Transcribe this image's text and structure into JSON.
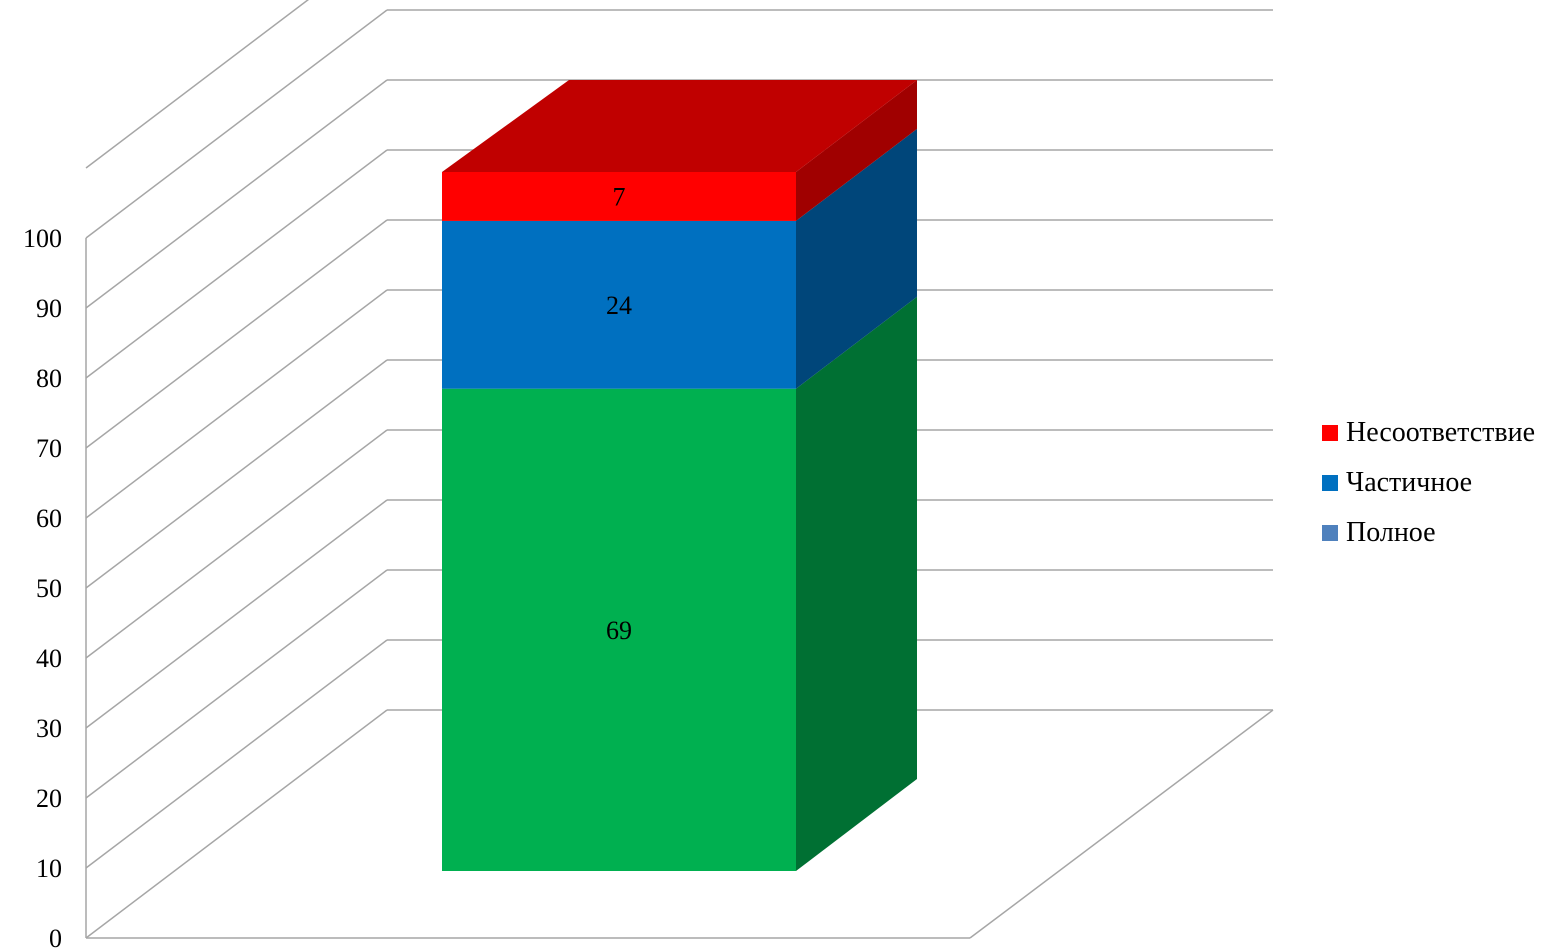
{
  "chart_data": {
    "type": "bar",
    "stacked": true,
    "three_d": true,
    "categories": [
      ""
    ],
    "series": [
      {
        "name": "Полное",
        "values": [
          69
        ],
        "color": "#00B050",
        "side_color": "#007033",
        "legend_color": "#4F81BD"
      },
      {
        "name": "Частичное",
        "values": [
          24
        ],
        "color": "#0070C0",
        "side_color": "#00467A"
      },
      {
        "name": "Несоответствие",
        "values": [
          7
        ],
        "color": "#FF0000",
        "top_color": "#C00000",
        "side_color": "#A00000"
      }
    ],
    "data_labels": [
      "69",
      "24",
      "7"
    ],
    "ylim": [
      0,
      100
    ],
    "yticks": [
      "0",
      "10",
      "20",
      "30",
      "40",
      "50",
      "60",
      "70",
      "80",
      "90",
      "100"
    ],
    "grid": true,
    "legend_position": "right",
    "legend_order": [
      "Несоответствие",
      "Частичное",
      "Полное"
    ]
  }
}
